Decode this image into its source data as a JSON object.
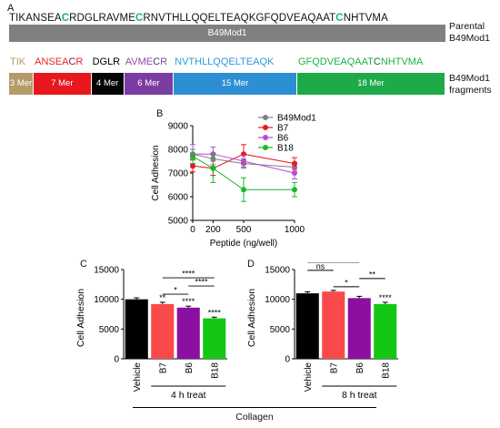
{
  "panel_a": {
    "letter": "A",
    "sequence": [
      {
        "t": "TIKANSEA"
      },
      {
        "t": "C",
        "c": "#1db47a"
      },
      {
        "t": "RDGLRAVME"
      },
      {
        "t": "C",
        "c": "#1db47a"
      },
      {
        "t": "RNVTHLLQQELTEAQKGFQDVEAQAAT"
      },
      {
        "t": "C",
        "c": "#1db47a"
      },
      {
        "t": "NHTVMA"
      }
    ],
    "parent_bar_label": "B49Mod1",
    "parent_side_label": [
      "Parental",
      "B49Mod1"
    ],
    "fragment_side_label": [
      "B49Mod1",
      "fragments"
    ],
    "fragments": [
      {
        "seq": [
          {
            "t": "TIK",
            "c": "#b09a6a"
          }
        ],
        "label": "3 Mer",
        "color": "#b59b6b",
        "width_res": 3
      },
      {
        "seq": [
          {
            "t": "ANSEA",
            "c": "#e8242b"
          },
          {
            "t": "C",
            "c": "#7a1f27"
          },
          {
            "t": "R",
            "c": "#e8242b"
          }
        ],
        "label": "7 Mer",
        "color": "#e8191e",
        "width_res": 7
      },
      {
        "seq": [
          {
            "t": "DGLR",
            "c": "#000000"
          }
        ],
        "label": "4 Mer",
        "color": "#050505",
        "width_res": 4
      },
      {
        "seq": [
          {
            "t": "AVME",
            "c": "#8e4aa8"
          },
          {
            "t": "C",
            "c": "#5a2d6f"
          },
          {
            "t": "R",
            "c": "#8e4aa8"
          }
        ],
        "label": "6 Mer",
        "color": "#7b3da2",
        "width_res": 6
      },
      {
        "seq": [
          {
            "t": "NVTHLLQQELTEAQK",
            "c": "#2e9ad8"
          }
        ],
        "label": "15 Mer",
        "color": "#2d8fd3",
        "width_res": 15
      },
      {
        "seq": [
          {
            "t": "GFQDVEAQAAT",
            "c": "#1db14b"
          },
          {
            "t": "C",
            "c": "#0d6e30"
          },
          {
            "t": "NHTVMA",
            "c": "#1db14b"
          }
        ],
        "label": "18 Mer",
        "color": "#1faa4a",
        "width_res": 18
      }
    ]
  },
  "chart_data": [
    {
      "panel": "B",
      "type": "line",
      "xlabel": "Peptide (ng/well)",
      "ylabel": "Cell Adhesion",
      "x": [
        0,
        200,
        500,
        1000
      ],
      "x_ticks": [
        "0",
        "200",
        "500",
        "1000"
      ],
      "xlim": [
        0,
        1000
      ],
      "ylim": [
        5000,
        9000
      ],
      "y_ticks": [
        "5000",
        "6000",
        "7000",
        "8000",
        "9000"
      ],
      "legend_position": "top-right",
      "series": [
        {
          "name": "B49Mod1",
          "color": "#808080",
          "values": [
            7800,
            7600,
            7400,
            7250
          ],
          "err": [
            200,
            250,
            200,
            200
          ]
        },
        {
          "name": "B7",
          "color": "#e8191e",
          "values": [
            7300,
            7200,
            7800,
            7400
          ],
          "err": [
            250,
            300,
            400,
            250
          ]
        },
        {
          "name": "B6",
          "color": "#b44dd4",
          "values": [
            7800,
            7800,
            7500,
            7000
          ],
          "err": [
            400,
            300,
            250,
            250
          ]
        },
        {
          "name": "B18",
          "color": "#19b828",
          "values": [
            7700,
            7200,
            6300,
            6300
          ],
          "err": [
            300,
            600,
            500,
            300
          ]
        }
      ]
    },
    {
      "panel": "C",
      "type": "bar",
      "ylabel": "Cell Adhesion",
      "group_label": "4 h treat",
      "categories": [
        "Vehicle",
        "B7",
        "B6",
        "B18"
      ],
      "values": [
        10000,
        9200,
        8600,
        6800
      ],
      "err": [
        250,
        300,
        250,
        200
      ],
      "colors": [
        "#000000",
        "#f84a4a",
        "#8b0fa0",
        "#14c714"
      ],
      "ylim": [
        0,
        15000
      ],
      "y_ticks": [
        "0",
        "5000",
        "10000",
        "15000"
      ],
      "bar_labels": [
        "",
        "**",
        "****",
        "****"
      ],
      "comparisons": [
        {
          "from": 1,
          "to": 2,
          "label": "*"
        },
        {
          "from": 2,
          "to": 3,
          "label": "****"
        },
        {
          "from": 1,
          "to": 3,
          "label": "****"
        }
      ]
    },
    {
      "panel": "D",
      "type": "bar",
      "ylabel": "Cell Adhesion",
      "group_label": "8 h treat",
      "categories": [
        "Vehicle",
        "B7",
        "B6",
        "B18"
      ],
      "values": [
        11000,
        11300,
        10200,
        9200
      ],
      "err": [
        250,
        200,
        300,
        300
      ],
      "colors": [
        "#000000",
        "#f84a4a",
        "#8b0fa0",
        "#14c714"
      ],
      "ylim": [
        0,
        15000
      ],
      "y_ticks": [
        "0",
        "5000",
        "10000",
        "15000"
      ],
      "bar_labels": [
        "",
        "",
        "",
        "****"
      ],
      "comparisons": [
        {
          "from": 1,
          "to": 2,
          "label": "*"
        },
        {
          "from": 2,
          "to": 3,
          "label": "**"
        },
        {
          "from": 0,
          "to": 1,
          "label": "ns"
        },
        {
          "from": 0,
          "to": 2,
          "label": "***"
        },
        {
          "from": 0,
          "to": 3,
          "label": "****"
        }
      ]
    }
  ],
  "footer": {
    "label": "Collagen"
  }
}
